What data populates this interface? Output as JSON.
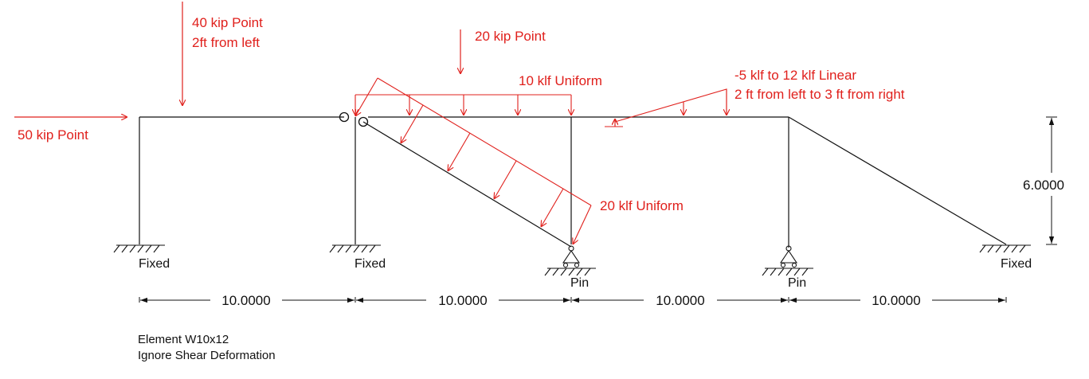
{
  "colors": {
    "structure": "#111111",
    "load": "#e0201c",
    "background": "#ffffff"
  },
  "loads": {
    "horizontal_point": "50 kip Point",
    "point_40_line1": "40 kip Point",
    "point_40_line2": "2ft from left",
    "point_20": "20 kip Point",
    "uniform_10": "10 klf Uniform",
    "linear_line1": "-5 klf to 12 klf Linear",
    "linear_line2": "2 ft from left to 3 ft from right",
    "uniform_20": "20 klf Uniform"
  },
  "supports": {
    "s1": "Fixed",
    "s2": "Fixed",
    "s3": "Pin",
    "s4": "Pin",
    "s5": "Fixed"
  },
  "dimensions": {
    "span1": "10.0000",
    "span2": "10.0000",
    "span3": "10.0000",
    "span4": "10.0000",
    "height": "6.0000"
  },
  "notes": {
    "element": "Element W10x12",
    "shear": "Ignore Shear Deformation"
  }
}
